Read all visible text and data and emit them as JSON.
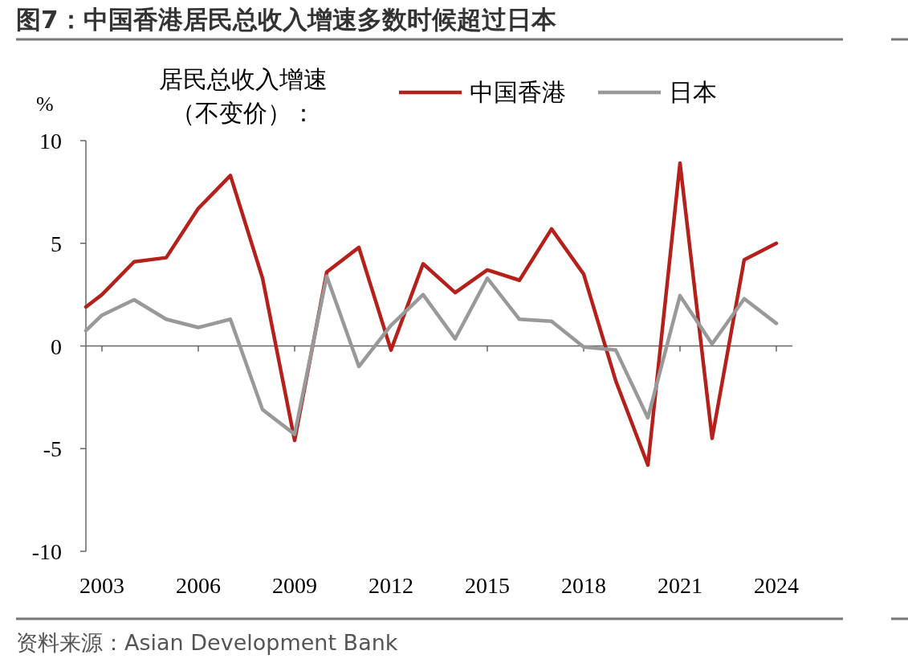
{
  "chart_data": {
    "type": "line",
    "title": "图7：中国香港居民总收入增速多数时候超过日本",
    "ylabel": "%",
    "annotations": [
      "居民总收入增速（不变价）：",
      "资料来源：Asian Development Bank"
    ],
    "x": [
      2002.5,
      2003,
      2004,
      2005,
      2006,
      2007,
      2008,
      2009,
      2010,
      2011,
      2012,
      2013,
      2014,
      2015,
      2016,
      2017,
      2018,
      2019,
      2020,
      2021,
      2022,
      2023,
      2024
    ],
    "series": [
      {
        "name": "中国香港",
        "color": "#b5201b",
        "values": [
          1.9,
          2.5,
          4.1,
          4.3,
          6.7,
          8.3,
          3.3,
          -4.6,
          3.6,
          4.8,
          -0.2,
          4.0,
          2.6,
          3.7,
          3.2,
          5.7,
          3.5,
          -1.7,
          -5.8,
          8.9,
          -4.5,
          4.2,
          5.0
        ]
      },
      {
        "name": "日本",
        "color": "#999999",
        "values": [
          0.75,
          1.5,
          2.25,
          1.3,
          0.9,
          1.3,
          -3.1,
          -4.3,
          3.4,
          -1.0,
          1.0,
          2.5,
          0.35,
          3.3,
          1.3,
          1.2,
          -0.05,
          -0.2,
          -3.5,
          2.45,
          0.1,
          2.3,
          1.1
        ]
      }
    ],
    "xlim": [
      2002.5,
      2024.5
    ],
    "xticks": [
      2003,
      2006,
      2009,
      2012,
      2015,
      2018,
      2021,
      2024
    ],
    "ylim": [
      -10,
      10
    ],
    "yticks": [
      -10,
      -5,
      0,
      5,
      10
    ],
    "legend": "top right",
    "marker": "none",
    "line_style": "solid"
  }
}
